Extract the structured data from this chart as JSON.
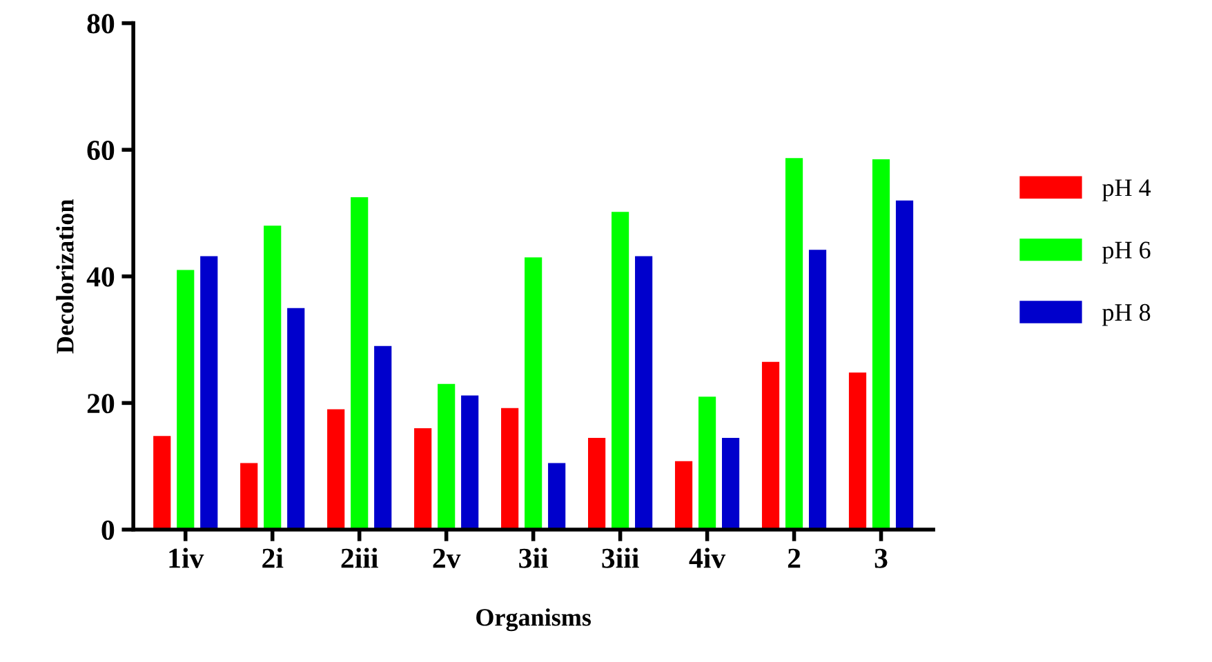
{
  "chart_data": {
    "type": "bar",
    "xlabel": "Organisms",
    "ylabel": "Decolorization",
    "categories": [
      "1iv",
      "2i",
      "2iii",
      "2v",
      "3ii",
      "3iii",
      "4iv",
      "2",
      "3"
    ],
    "series": [
      {
        "name": "pH 4",
        "color": "#ff0000",
        "values": [
          14.8,
          10.5,
          19,
          16,
          19.2,
          14.5,
          10.8,
          26.5,
          24.8
        ]
      },
      {
        "name": "pH 6",
        "color": "#00ff00",
        "values": [
          41,
          48,
          52.5,
          23,
          43,
          50.2,
          21,
          58.7,
          58.5
        ]
      },
      {
        "name": "pH 8",
        "color": "#0000cc",
        "values": [
          43.2,
          35,
          29,
          21.2,
          10.5,
          43.2,
          14.5,
          44.2,
          52
        ]
      }
    ],
    "ylim": [
      0,
      80
    ],
    "yticks": [
      0,
      20,
      40,
      60,
      80
    ],
    "grid": false,
    "legend": "right"
  }
}
